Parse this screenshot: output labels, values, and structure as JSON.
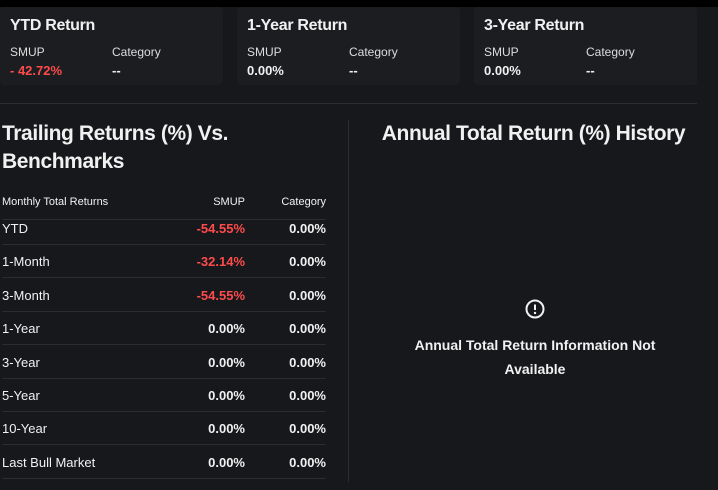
{
  "cards": [
    {
      "title": "YTD Return",
      "labels": [
        "SMUP",
        "Category"
      ],
      "values": [
        "- 42.72%",
        "--"
      ]
    },
    {
      "title": "1-Year Return",
      "labels": [
        "SMUP",
        "Category"
      ],
      "values": [
        "0.00%",
        "--"
      ]
    },
    {
      "title": "3-Year Return",
      "labels": [
        "SMUP",
        "Category"
      ],
      "values": [
        "0.00%",
        "--"
      ]
    }
  ],
  "trailing": {
    "title": "Trailing Returns (%) Vs. Benchmarks",
    "header": [
      "Monthly Total Returns",
      "SMUP",
      "Category"
    ],
    "rows": [
      [
        "YTD",
        "-54.55%",
        "0.00%"
      ],
      [
        "1-Month",
        "-32.14%",
        "0.00%"
      ],
      [
        "3-Month",
        "-54.55%",
        "0.00%"
      ],
      [
        "1-Year",
        "0.00%",
        "0.00%"
      ],
      [
        "3-Year",
        "0.00%",
        "0.00%"
      ],
      [
        "5-Year",
        "0.00%",
        "0.00%"
      ],
      [
        "10-Year",
        "0.00%",
        "0.00%"
      ],
      [
        "Last Bull Market",
        "0.00%",
        "0.00%"
      ]
    ]
  },
  "annual": {
    "title": "Annual Total Return (%) History",
    "message": "Annual Total Return Information Not Available"
  }
}
